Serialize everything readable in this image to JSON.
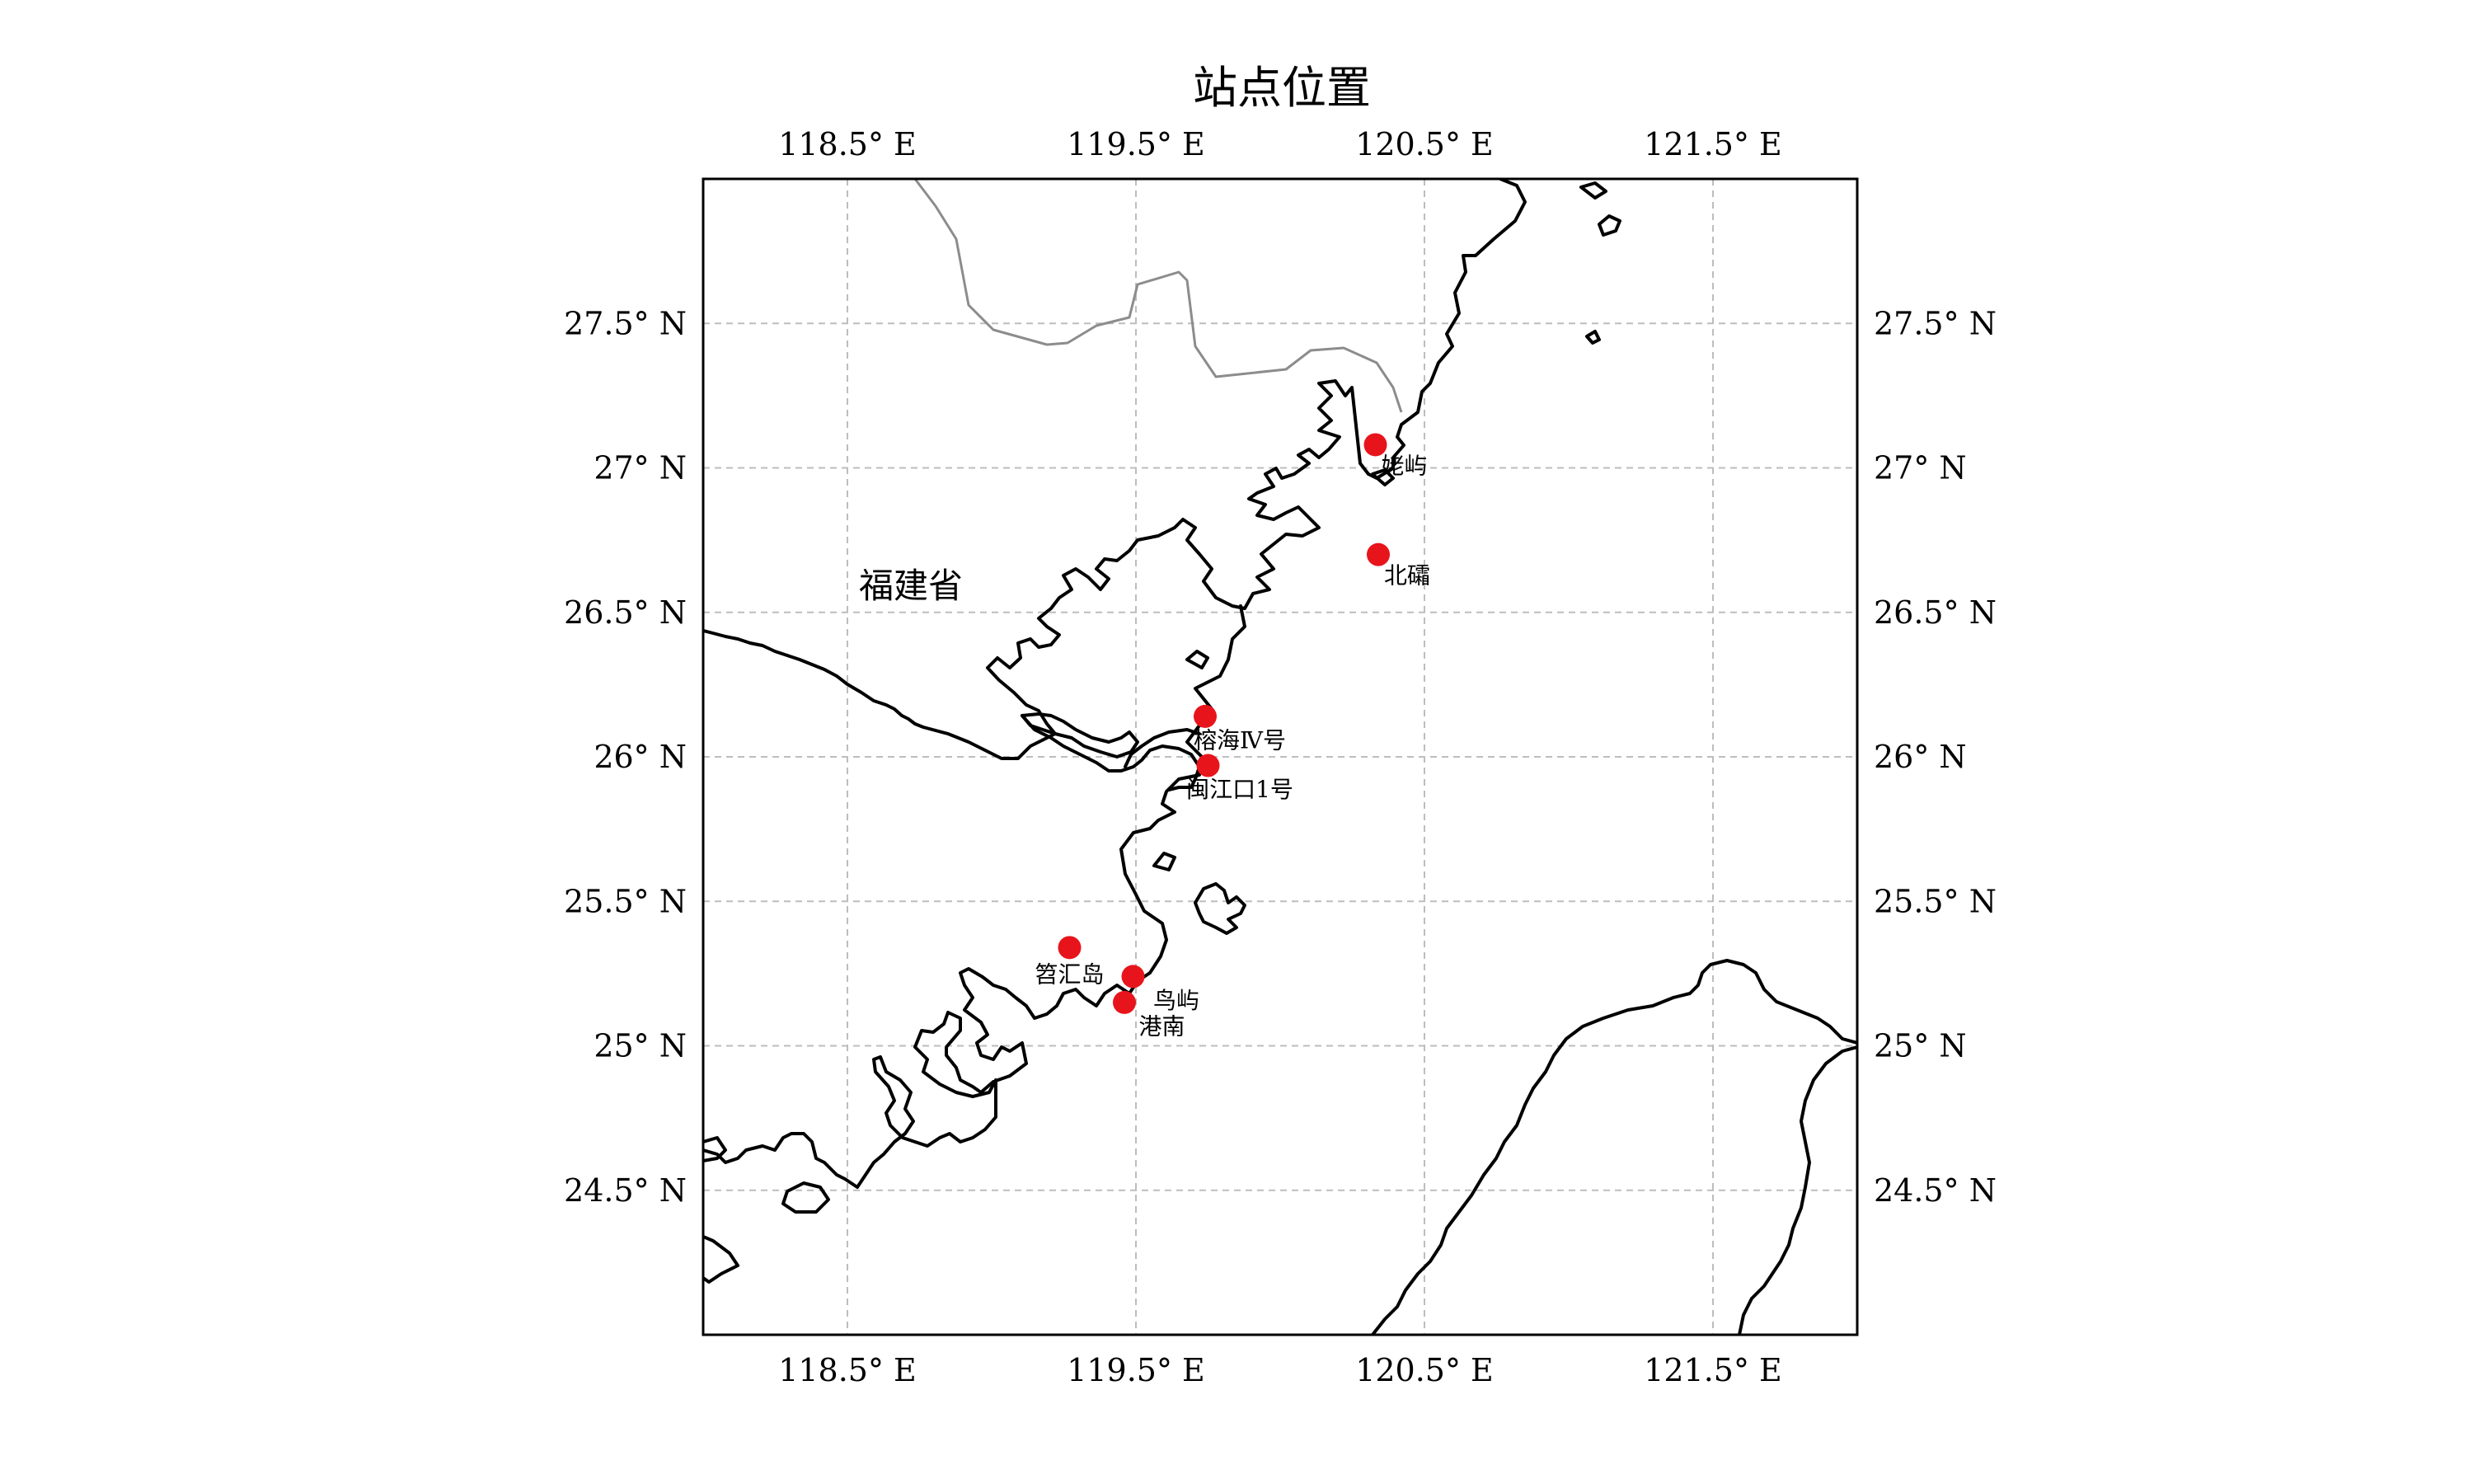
{
  "map": {
    "title": "站点位置",
    "region_label": "福建省",
    "region_label_lon": 118.72,
    "region_label_lat": 26.55,
    "extent": {
      "lon_min": 118.0,
      "lon_max": 122.0,
      "lat_min": 24.0,
      "lat_max": 28.0
    },
    "lon_ticks": [
      {
        "value": 118.5,
        "label": "118.5° E"
      },
      {
        "value": 119.5,
        "label": "119.5° E"
      },
      {
        "value": 120.5,
        "label": "120.5° E"
      },
      {
        "value": 121.5,
        "label": "121.5° E"
      }
    ],
    "lat_ticks": [
      {
        "value": 27.5,
        "label": "27.5° N"
      },
      {
        "value": 27.0,
        "label": "27° N"
      },
      {
        "value": 26.5,
        "label": "26.5° N"
      },
      {
        "value": 26.0,
        "label": "26° N"
      },
      {
        "value": 25.5,
        "label": "25.5° N"
      },
      {
        "value": 25.0,
        "label": "25° N"
      },
      {
        "value": 24.5,
        "label": "24.5° N"
      }
    ],
    "station_color": "#e8141b",
    "coast_color": "#000000",
    "border_color": "#8c8c8c",
    "grid_color": "#bdbdbd",
    "stations": [
      {
        "name": "姥屿",
        "lon": 120.33,
        "lat": 27.08,
        "label_lon": 120.43,
        "label_lat": 26.98
      },
      {
        "name": "北礵",
        "lon": 120.34,
        "lat": 26.7,
        "label_lon": 120.44,
        "label_lat": 26.6
      },
      {
        "name": "榕海Ⅳ号",
        "lon": 119.74,
        "lat": 26.14,
        "label_lon": 119.86,
        "label_lat": 26.03
      },
      {
        "name": "闽江口1号",
        "lon": 119.75,
        "lat": 25.97,
        "label_lon": 119.86,
        "label_lat": 25.86
      },
      {
        "name": "笤汇岛",
        "lon": 119.27,
        "lat": 25.34,
        "label_lon": 119.27,
        "label_lat": 25.22
      },
      {
        "name": "鸟屿",
        "lon": 119.49,
        "lat": 25.24,
        "label_lon": 119.64,
        "label_lat": 25.13
      },
      {
        "name": "港南",
        "lon": 119.46,
        "lat": 25.15,
        "label_lon": 119.59,
        "label_lat": 25.04
      }
    ]
  }
}
